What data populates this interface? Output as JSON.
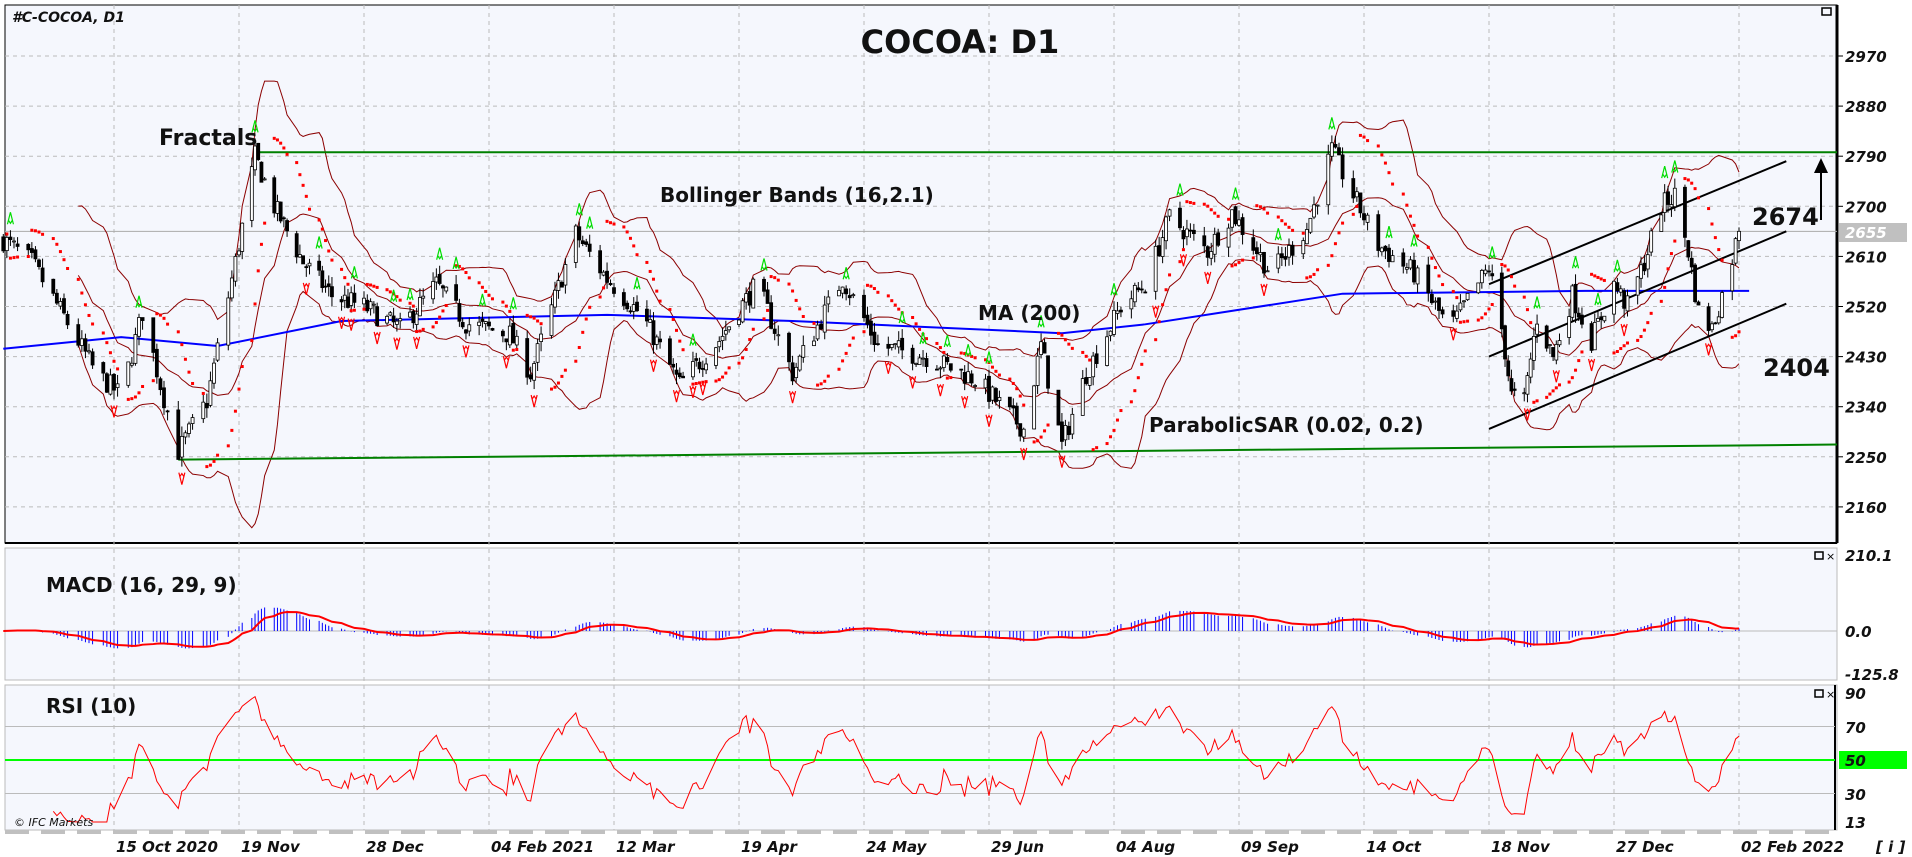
{
  "chart_data": {
    "type": "candlestick",
    "symbol": "#C-COCOA, D1",
    "title": "COCOA: D1",
    "copyright": "© IFC Markets",
    "info_button": "[ i ]",
    "price_ticks": [
      2970,
      2880,
      2790,
      2700,
      2610,
      2520,
      2430,
      2340,
      2250,
      2160
    ],
    "current_price": 2655,
    "date_ticks": [
      {
        "date": "2020-10-15",
        "label": "15 Oct 2020"
      },
      {
        "date": "2020-11-19",
        "label": "19 Nov"
      },
      {
        "date": "2020-12-28",
        "label": "28 Dec"
      },
      {
        "date": "2021-02-04",
        "label": "04 Feb 2021"
      },
      {
        "date": "2021-03-12",
        "label": "12 Mar"
      },
      {
        "date": "2021-04-19",
        "label": "19 Apr"
      },
      {
        "date": "2021-05-24",
        "label": "24 May"
      },
      {
        "date": "2021-06-29",
        "label": "29 Jun"
      },
      {
        "date": "2021-08-04",
        "label": "04 Aug"
      },
      {
        "date": "2021-09-09",
        "label": "09 Sep"
      },
      {
        "date": "2021-10-14",
        "label": "14 Oct"
      },
      {
        "date": "2021-11-18",
        "label": "18 Nov"
      },
      {
        "date": "2021-12-27",
        "label": "27 Dec"
      },
      {
        "date": "2022-02-02",
        "label": "02 Feb 2022"
      }
    ],
    "close": [
      {
        "date": "2020-09-14",
        "close": 2640
      },
      {
        "date": "2020-09-22",
        "close": 2600
      },
      {
        "date": "2020-10-03",
        "close": 2480
      },
      {
        "date": "2020-10-10",
        "close": 2400
      },
      {
        "date": "2020-10-17",
        "close": 2360
      },
      {
        "date": "2020-10-23",
        "close": 2510
      },
      {
        "date": "2020-10-28",
        "close": 2380
      },
      {
        "date": "2020-11-02",
        "close": 2260
      },
      {
        "date": "2020-11-10",
        "close": 2350
      },
      {
        "date": "2020-11-18",
        "close": 2600
      },
      {
        "date": "2020-11-24",
        "close": 2790
      },
      {
        "date": "2020-11-30",
        "close": 2700
      },
      {
        "date": "2020-12-09",
        "close": 2600
      },
      {
        "date": "2020-12-18",
        "close": 2540
      },
      {
        "date": "2020-12-28",
        "close": 2520
      },
      {
        "date": "2021-01-08",
        "close": 2480
      },
      {
        "date": "2021-01-19",
        "close": 2560
      },
      {
        "date": "2021-01-28",
        "close": 2490
      },
      {
        "date": "2021-02-10",
        "close": 2470
      },
      {
        "date": "2021-02-16",
        "close": 2400
      },
      {
        "date": "2021-03-01",
        "close": 2650
      },
      {
        "date": "2021-03-10",
        "close": 2570
      },
      {
        "date": "2021-03-21",
        "close": 2500
      },
      {
        "date": "2021-04-01",
        "close": 2380
      },
      {
        "date": "2021-04-13",
        "close": 2460
      },
      {
        "date": "2021-04-24",
        "close": 2560
      },
      {
        "date": "2021-05-04",
        "close": 2400
      },
      {
        "date": "2021-05-18",
        "close": 2570
      },
      {
        "date": "2021-05-28",
        "close": 2450
      },
      {
        "date": "2021-06-11",
        "close": 2430
      },
      {
        "date": "2021-06-25",
        "close": 2390
      },
      {
        "date": "2021-07-09",
        "close": 2300
      },
      {
        "date": "2021-07-14",
        "close": 2450
      },
      {
        "date": "2021-07-20",
        "close": 2270
      },
      {
        "date": "2021-07-27",
        "close": 2400
      },
      {
        "date": "2021-08-06",
        "close": 2520
      },
      {
        "date": "2021-08-13",
        "close": 2560
      },
      {
        "date": "2021-08-20",
        "close": 2680
      },
      {
        "date": "2021-08-31",
        "close": 2620
      },
      {
        "date": "2021-09-07",
        "close": 2690
      },
      {
        "date": "2021-09-18",
        "close": 2580
      },
      {
        "date": "2021-09-28",
        "close": 2660
      },
      {
        "date": "2021-10-05",
        "close": 2800
      },
      {
        "date": "2021-10-11",
        "close": 2720
      },
      {
        "date": "2021-10-18",
        "close": 2630
      },
      {
        "date": "2021-10-28",
        "close": 2580
      },
      {
        "date": "2021-11-07",
        "close": 2480
      },
      {
        "date": "2021-11-18",
        "close": 2590
      },
      {
        "date": "2021-11-22",
        "close": 2480
      },
      {
        "date": "2021-11-25",
        "close": 2360
      },
      {
        "date": "2021-11-29",
        "close": 2350
      },
      {
        "date": "2021-12-03",
        "close": 2500
      },
      {
        "date": "2021-12-08",
        "close": 2430
      },
      {
        "date": "2021-12-14",
        "close": 2540
      },
      {
        "date": "2021-12-20",
        "close": 2460
      },
      {
        "date": "2021-12-27",
        "close": 2560
      },
      {
        "date": "2021-12-31",
        "close": 2520
      },
      {
        "date": "2022-01-05",
        "close": 2600
      },
      {
        "date": "2022-01-10",
        "close": 2700
      },
      {
        "date": "2022-01-14",
        "close": 2720
      },
      {
        "date": "2022-01-18",
        "close": 2620
      },
      {
        "date": "2022-01-21",
        "close": 2510
      },
      {
        "date": "2022-01-25",
        "close": 2480
      },
      {
        "date": "2022-01-28",
        "close": 2540
      },
      {
        "date": "2022-02-02",
        "close": 2655
      }
    ],
    "ma200": [
      {
        "date": "2020-09-14",
        "value": 2444
      },
      {
        "date": "2020-10-17",
        "value": 2465
      },
      {
        "date": "2020-11-13",
        "value": 2449
      },
      {
        "date": "2020-12-21",
        "value": 2494
      },
      {
        "date": "2021-03-10",
        "value": 2505
      },
      {
        "date": "2021-05-04",
        "value": 2494
      },
      {
        "date": "2021-07-20",
        "value": 2472
      },
      {
        "date": "2021-08-13",
        "value": 2488
      },
      {
        "date": "2021-10-08",
        "value": 2543
      },
      {
        "date": "2021-12-18",
        "value": 2548
      },
      {
        "date": "2022-02-05",
        "value": 2548
      }
    ],
    "resistance": {
      "from": {
        "date": "2020-11-24",
        "price": 2797
      },
      "to": {
        "date": "end",
        "price": 2797
      }
    },
    "support": {
      "from": {
        "date": "2020-11-02",
        "price": 2245
      },
      "to": {
        "date": "end",
        "price": 2272
      }
    },
    "channel": [
      {
        "from": {
          "date": "2021-11-18",
          "price": 2300
        },
        "to": {
          "date": "2022-02-16",
          "price": 2525
        }
      },
      {
        "from": {
          "date": "2021-11-18",
          "price": 2430
        },
        "to": {
          "date": "2022-02-16",
          "price": 2655
        }
      },
      {
        "from": {
          "date": "2021-11-18",
          "price": 2560
        },
        "to": {
          "date": "2022-02-16",
          "price": 2781
        }
      }
    ],
    "levels": {
      "upper": "2674",
      "lower": "2404"
    },
    "indicators": {
      "fractals": "Fractals",
      "bollinger": "Bollinger Bands (16,2.1)",
      "ma": "MA (200)",
      "sar": "ParabolicSAR (0.02, 0.2)",
      "macd": "MACD (16, 29, 9)",
      "rsi": "RSI (10)"
    },
    "macd_ticks": [
      "210.1",
      "0.0",
      "-125.8"
    ],
    "rsi_ticks": [
      "90",
      "70",
      "50",
      "30",
      "13"
    ],
    "colors": {
      "background": "#f5f7fd",
      "ma": "#0000ff",
      "bands": "#8b0000",
      "sar": "#ff0000",
      "fractal_up": "#00dd00",
      "fractal_down": "#ff0000",
      "support_resistance": "#008000",
      "rsi_mid": "#00ff00",
      "macd_hist": "#0000ff",
      "macd_signal": "#ff0000"
    }
  }
}
